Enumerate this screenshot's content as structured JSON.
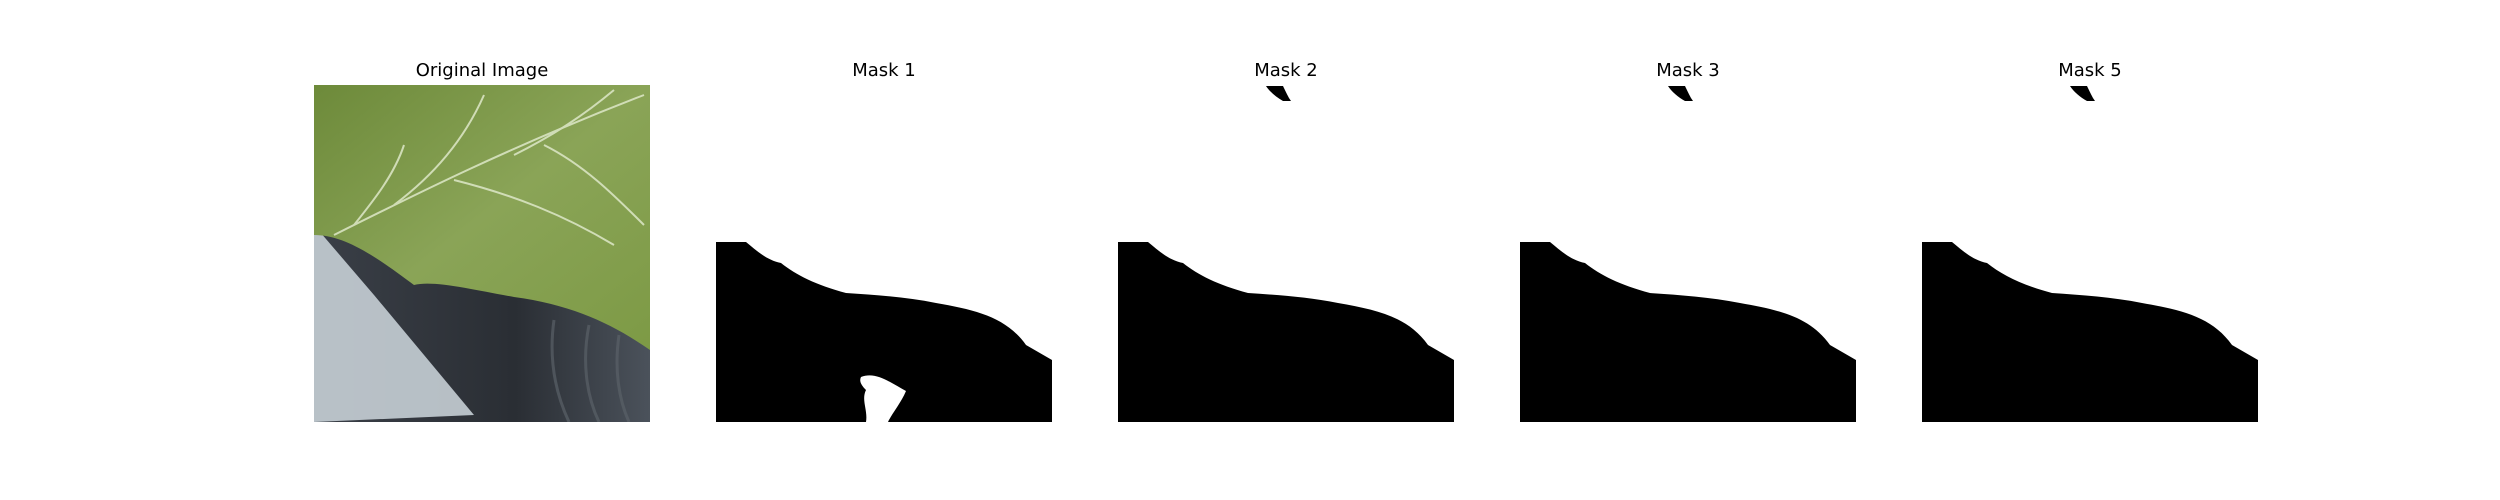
{
  "panels": [
    {
      "title": "Original Image"
    },
    {
      "title": "Mask 1"
    },
    {
      "title": "Mask 2"
    },
    {
      "title": "Mask 3"
    },
    {
      "title": "Mask 5"
    }
  ],
  "colors": {
    "background": "#ffffff",
    "mask_fill": "#000000",
    "leaf": "#7f9a4a",
    "dark_object": "#2e3238",
    "light_background": "#e6ecef"
  }
}
